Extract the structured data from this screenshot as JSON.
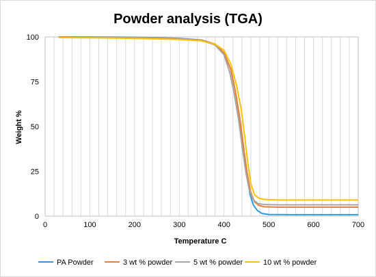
{
  "chart_data": {
    "type": "line",
    "title": "Powder analysis (TGA)",
    "xlabel": "Temperature C",
    "ylabel": "Weight %",
    "xlim": [
      0,
      700
    ],
    "ylim": [
      0,
      100
    ],
    "xticks": [
      0,
      100,
      200,
      300,
      400,
      500,
      600,
      700
    ],
    "yticks": [
      0,
      25,
      50,
      75,
      100
    ],
    "grid": "vertical",
    "legend": "bottom",
    "series": [
      {
        "name": "PA Powder",
        "color": "#2e9bd6",
        "points": [
          [
            30,
            100
          ],
          [
            100,
            100
          ],
          [
            200,
            99.8
          ],
          [
            300,
            99.2
          ],
          [
            350,
            98.3
          ],
          [
            380,
            96
          ],
          [
            400,
            91
          ],
          [
            415,
            82
          ],
          [
            425,
            70
          ],
          [
            435,
            55
          ],
          [
            443,
            40
          ],
          [
            450,
            25
          ],
          [
            458,
            12
          ],
          [
            466,
            6
          ],
          [
            475,
            3
          ],
          [
            485,
            1.5
          ],
          [
            500,
            0.9
          ],
          [
            550,
            0.8
          ],
          [
            600,
            0.8
          ],
          [
            700,
            0.8
          ]
        ]
      },
      {
        "name": "3 wt % powder",
        "color": "#ed7d31",
        "points": [
          [
            30,
            99.8
          ],
          [
            100,
            99.8
          ],
          [
            200,
            99.6
          ],
          [
            300,
            99
          ],
          [
            350,
            98.2
          ],
          [
            380,
            96
          ],
          [
            400,
            91
          ],
          [
            415,
            82
          ],
          [
            425,
            70
          ],
          [
            435,
            55
          ],
          [
            443,
            40
          ],
          [
            451,
            25
          ],
          [
            459,
            14
          ],
          [
            468,
            8
          ],
          [
            478,
            6
          ],
          [
            490,
            5.2
          ],
          [
            520,
            5
          ],
          [
            600,
            5
          ],
          [
            700,
            5
          ]
        ]
      },
      {
        "name": "5 wt % powder",
        "color": "#a5a5a5",
        "points": [
          [
            30,
            99.8
          ],
          [
            100,
            99.8
          ],
          [
            200,
            99.5
          ],
          [
            300,
            98.9
          ],
          [
            350,
            98
          ],
          [
            380,
            95.5
          ],
          [
            400,
            90
          ],
          [
            413,
            80
          ],
          [
            423,
            68
          ],
          [
            433,
            53
          ],
          [
            441,
            38
          ],
          [
            449,
            24
          ],
          [
            457,
            14
          ],
          [
            466,
            9
          ],
          [
            476,
            7
          ],
          [
            490,
            6.5
          ],
          [
            520,
            6.3
          ],
          [
            600,
            6.3
          ],
          [
            700,
            6.3
          ]
        ]
      },
      {
        "name": "10 wt % powder",
        "color": "#ffc000",
        "points": [
          [
            30,
            99.6
          ],
          [
            100,
            99.5
          ],
          [
            200,
            99.2
          ],
          [
            300,
            98.6
          ],
          [
            350,
            97.8
          ],
          [
            380,
            96
          ],
          [
            400,
            92.5
          ],
          [
            415,
            85
          ],
          [
            428,
            73
          ],
          [
            438,
            60
          ],
          [
            446,
            45
          ],
          [
            453,
            30
          ],
          [
            460,
            18
          ],
          [
            468,
            12
          ],
          [
            478,
            10
          ],
          [
            490,
            9.3
          ],
          [
            520,
            9
          ],
          [
            600,
            9
          ],
          [
            700,
            9
          ]
        ]
      }
    ]
  }
}
